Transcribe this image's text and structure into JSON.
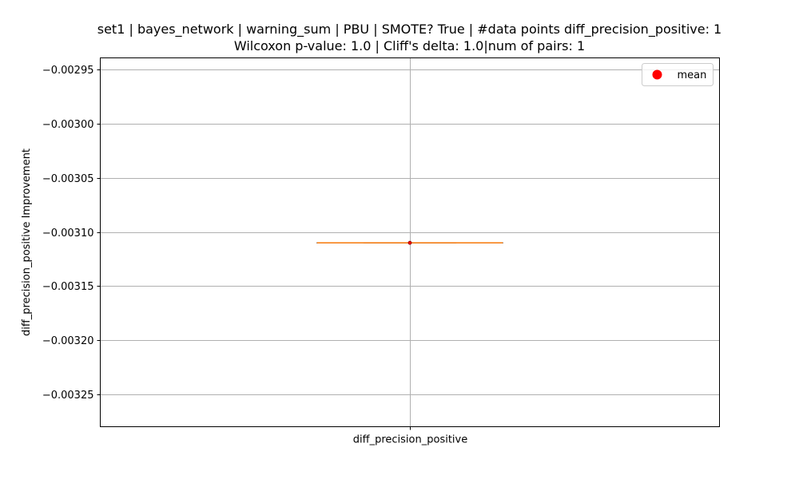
{
  "chart_data": {
    "type": "box",
    "title_lines": [
      "set1 | bayes_network | warning_sum | PBU | SMOTE? True | #data points diff_precision_positive: 1",
      "Wilcoxon p-value: 1.0 | Cliff's delta: 1.0|num of pairs: 1"
    ],
    "xlabel": "",
    "ylabel": "diff_precision_positive Improvement",
    "categories": [
      "diff_precision_positive"
    ],
    "ylim": [
      -0.00328,
      -0.002939
    ],
    "yticks": [
      -0.00295,
      -0.003,
      -0.00305,
      -0.0031,
      -0.00315,
      -0.0032,
      -0.00325
    ],
    "ytick_labels": [
      "−0.00295",
      "−0.00300",
      "−0.00305",
      "−0.00310",
      "−0.00315",
      "−0.00320",
      "−0.00325"
    ],
    "boxes": [
      {
        "category": "diff_precision_positive",
        "min": -0.00311,
        "q1": -0.00311,
        "median": -0.00311,
        "q3": -0.00311,
        "max": -0.00311,
        "mean": -0.00311
      }
    ],
    "grid": true,
    "legend": {
      "position": "top-right",
      "entries": [
        {
          "label": "mean",
          "marker": "circle",
          "color": "#ff0000"
        }
      ]
    },
    "colors": {
      "box": "#000000",
      "median": "#ff7f0e",
      "mean": "#ff0000",
      "grid": "#b0b0b0"
    }
  }
}
